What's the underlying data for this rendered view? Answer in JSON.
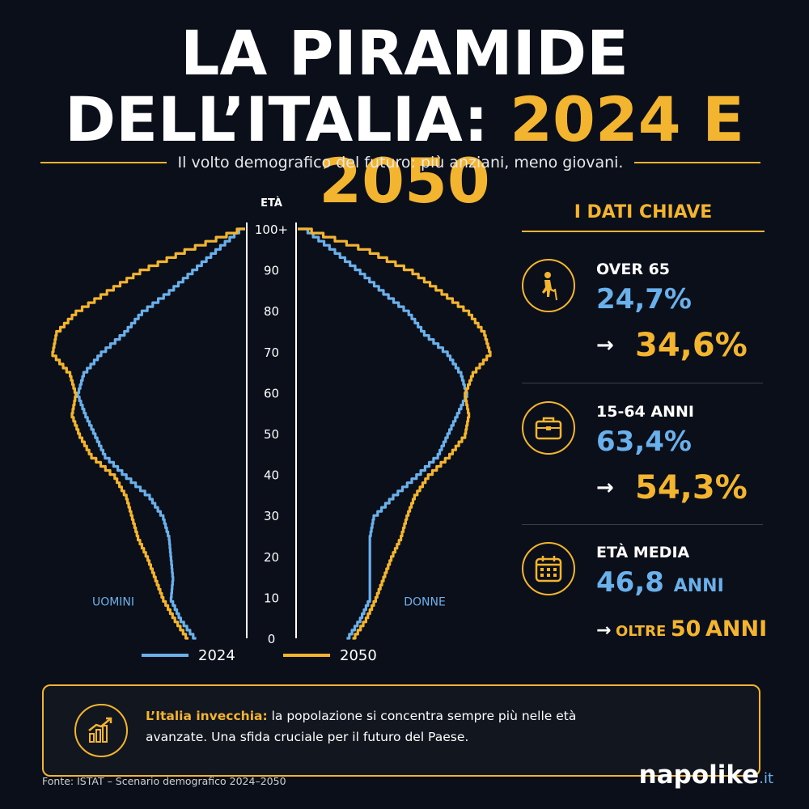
{
  "header": {
    "title_line1": "LA PIRAMIDE",
    "title_line2_white": "DELL’ITALIA:",
    "title_line2_gold": "2024 E 2050",
    "subtitle": "Il volto demografico del futuro: più anziani, meno giovani."
  },
  "colors": {
    "background": "#0b0f1a",
    "series_2024": "#6ab0ea",
    "series_2050": "#f3b530"
  },
  "chart_data": {
    "type": "area",
    "subtype": "population pyramid (outline)",
    "ylabel": "ETÀ",
    "y_ticks": [
      "0",
      "10",
      "20",
      "30",
      "40",
      "50",
      "60",
      "70",
      "80",
      "90",
      "100+"
    ],
    "ylim": [
      0,
      100
    ],
    "left_label": "UOMINI",
    "right_label": "DONNE",
    "legend": [
      {
        "name": "2024",
        "color": "#6ab0ea"
      },
      {
        "name": "2050",
        "color": "#f3b530"
      }
    ],
    "age": [
      0,
      5,
      10,
      15,
      20,
      25,
      30,
      35,
      40,
      45,
      50,
      55,
      60,
      65,
      70,
      75,
      80,
      85,
      90,
      95,
      100
    ],
    "series": [
      {
        "name": "2024",
        "men": [
          0.26,
          0.34,
          0.39,
          0.38,
          0.39,
          0.4,
          0.43,
          0.5,
          0.62,
          0.73,
          0.78,
          0.83,
          0.87,
          0.84,
          0.75,
          0.63,
          0.54,
          0.4,
          0.28,
          0.16,
          0.04
        ],
        "women": [
          0.26,
          0.33,
          0.38,
          0.38,
          0.38,
          0.38,
          0.4,
          0.5,
          0.62,
          0.73,
          0.78,
          0.83,
          0.88,
          0.85,
          0.78,
          0.66,
          0.58,
          0.45,
          0.33,
          0.2,
          0.06
        ]
      },
      {
        "name": "2050",
        "men": [
          0.3,
          0.37,
          0.43,
          0.47,
          0.51,
          0.56,
          0.59,
          0.62,
          0.68,
          0.8,
          0.86,
          0.9,
          0.88,
          0.91,
          1.0,
          0.98,
          0.88,
          0.72,
          0.55,
          0.32,
          0.05
        ],
        "women": [
          0.29,
          0.36,
          0.41,
          0.45,
          0.49,
          0.54,
          0.57,
          0.61,
          0.68,
          0.79,
          0.87,
          0.89,
          0.87,
          0.91,
          1.0,
          0.97,
          0.89,
          0.75,
          0.6,
          0.38,
          0.08
        ]
      }
    ]
  },
  "panel": {
    "title": "I DATI CHIAVE",
    "stats": [
      {
        "icon": "elderly-person-icon",
        "label": "OVER 65",
        "value_2024": "24,7%",
        "arrow": "→",
        "value_2050": "34,6%"
      },
      {
        "icon": "briefcase-icon",
        "label": "15-64 ANNI",
        "value_2024": "63,4%",
        "arrow": "→",
        "value_2050": "54,3%"
      },
      {
        "icon": "calendar-icon",
        "label": "ETÀ MEDIA",
        "value_2024": "46,8",
        "value_2024_unit": "ANNI",
        "arrow": "→",
        "value_2050_prefix": "OLTRE",
        "value_2050": "50",
        "value_2050_unit": "ANNI"
      }
    ]
  },
  "note": {
    "icon": "growth-chart-icon",
    "highlight": "L’Italia invecchia:",
    "text": " la popolazione si concentra sempre più nelle età avanzate. Una sfida cruciale per il futuro del Paese."
  },
  "footer": {
    "source": "Fonte: ISTAT – Scenario demografico 2024–2050",
    "brand": "napolike",
    "brand_suffix": ".it"
  }
}
